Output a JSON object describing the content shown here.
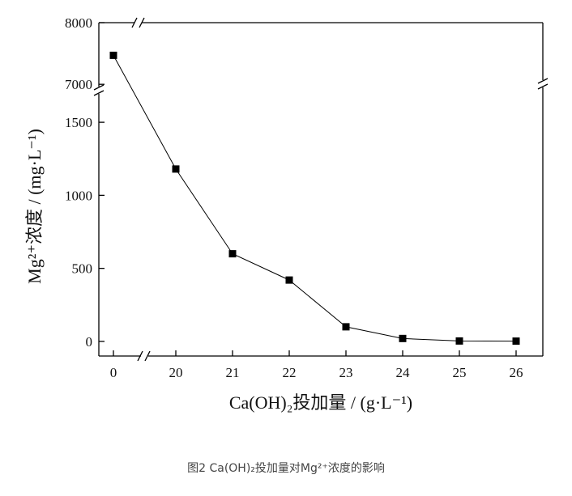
{
  "chart_data": {
    "type": "line",
    "x_label": "Ca(OH)₂投加量 / (g·L⁻¹)",
    "y_label": "Mg²⁺浓度 / (mg·L⁻¹)",
    "caption": "图2 Ca(OH)₂投加量对Mg²⁺浓度的影响",
    "categories": [
      "0",
      "20",
      "21",
      "22",
      "23",
      "24",
      "25",
      "26"
    ],
    "series": [
      {
        "name": "Mg²⁺",
        "color": "#000000",
        "values": [
          7470,
          1180,
          600,
          420,
          100,
          20,
          3,
          2
        ]
      }
    ],
    "ylim": [
      -100,
      8000
    ],
    "ybreak": [
      1700,
      6950
    ],
    "yticks": [
      0,
      500,
      1000,
      1500,
      7000,
      8000
    ]
  }
}
